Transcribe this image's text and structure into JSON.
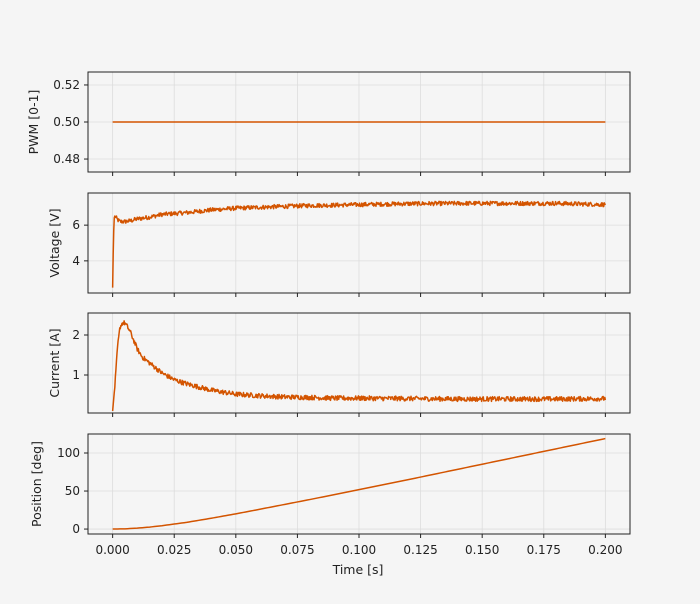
{
  "colors": {
    "background": "#f5f5f5",
    "line": "#d35400",
    "grid": "#dddddd",
    "axes": "#222222"
  },
  "chart_data": [
    {
      "id": "pwm",
      "type": "line",
      "xlim": [
        -0.01,
        0.21
      ],
      "ylim": [
        0.473,
        0.527
      ],
      "xticks": [
        0,
        0.025,
        0.05,
        0.075,
        0.1,
        0.125,
        0.15,
        0.175,
        0.2
      ],
      "yticks": [
        0.48,
        0.5,
        0.52
      ],
      "ytick_labels": [
        "0.48",
        "0.50",
        "0.52"
      ],
      "ylabel": "PWM [0-1]",
      "xlabel": "",
      "show_xtick_labels": false,
      "grid": true,
      "series": [
        {
          "x": [
            0,
            0.2
          ],
          "y": [
            0.5,
            0.5
          ]
        }
      ]
    },
    {
      "id": "voltage",
      "type": "line",
      "xlim": [
        -0.01,
        0.21
      ],
      "ylim": [
        2.2,
        7.8
      ],
      "xticks": [
        0,
        0.025,
        0.05,
        0.075,
        0.1,
        0.125,
        0.15,
        0.175,
        0.2
      ],
      "yticks": [
        4,
        6
      ],
      "ytick_labels": [
        "4",
        "6"
      ],
      "ylabel": "Voltage [V]",
      "xlabel": "",
      "show_xtick_labels": false,
      "grid": true,
      "noise_amplitude": 0.12,
      "series": [
        {
          "x": [
            0,
            0.0003,
            0.0006,
            0.001,
            0.002,
            0.003,
            0.005,
            0.0075,
            0.01,
            0.015,
            0.02,
            0.025,
            0.03,
            0.04,
            0.05,
            0.06,
            0.07,
            0.08,
            0.09,
            0.1,
            0.12,
            0.14,
            0.16,
            0.18,
            0.2
          ],
          "y": [
            2.5,
            5.0,
            6.4,
            6.5,
            6.3,
            6.2,
            6.2,
            6.25,
            6.35,
            6.45,
            6.6,
            6.65,
            6.7,
            6.85,
            6.95,
            7.0,
            7.05,
            7.1,
            7.12,
            7.15,
            7.2,
            7.22,
            7.22,
            7.22,
            7.15
          ]
        }
      ]
    },
    {
      "id": "current",
      "type": "line",
      "xlim": [
        -0.01,
        0.21
      ],
      "ylim": [
        0.05,
        2.55
      ],
      "xticks": [
        0,
        0.025,
        0.05,
        0.075,
        0.1,
        0.125,
        0.15,
        0.175,
        0.2
      ],
      "yticks": [
        1,
        2
      ],
      "ytick_labels": [
        "1",
        "2"
      ],
      "ylabel": "Current [A]",
      "xlabel": "",
      "show_xtick_labels": false,
      "grid": true,
      "noise_amplitude": 0.06,
      "series": [
        {
          "x": [
            0,
            0.001,
            0.002,
            0.003,
            0.004,
            0.005,
            0.006,
            0.007,
            0.008,
            0.01,
            0.012,
            0.015,
            0.02,
            0.025,
            0.03,
            0.04,
            0.05,
            0.06,
            0.07,
            0.08,
            0.09,
            0.1,
            0.12,
            0.14,
            0.16,
            0.18,
            0.2
          ],
          "y": [
            0.1,
            0.8,
            1.7,
            2.2,
            2.3,
            2.3,
            2.2,
            2.1,
            1.95,
            1.65,
            1.45,
            1.3,
            1.05,
            0.88,
            0.78,
            0.62,
            0.52,
            0.48,
            0.45,
            0.44,
            0.42,
            0.42,
            0.41,
            0.4,
            0.4,
            0.4,
            0.41
          ]
        }
      ]
    },
    {
      "id": "position",
      "type": "line",
      "xlim": [
        -0.01,
        0.21
      ],
      "ylim": [
        -6.5,
        125
      ],
      "xticks": [
        0,
        0.025,
        0.05,
        0.075,
        0.1,
        0.125,
        0.15,
        0.175,
        0.2
      ],
      "xtick_labels": [
        "0.000",
        "0.025",
        "0.050",
        "0.075",
        "0.100",
        "0.125",
        "0.150",
        "0.175",
        "0.200"
      ],
      "yticks": [
        0,
        50,
        100
      ],
      "ytick_labels": [
        "0",
        "50",
        "100"
      ],
      "ylabel": "Position [deg]",
      "xlabel": "Time [s]",
      "show_xtick_labels": true,
      "grid": true,
      "series": [
        {
          "x": [
            0,
            0.005,
            0.01,
            0.015,
            0.02,
            0.03,
            0.04,
            0.05,
            0.06,
            0.08,
            0.1,
            0.12,
            0.14,
            0.16,
            0.18,
            0.2
          ],
          "y": [
            0,
            0.3,
            1.2,
            2.6,
            4.4,
            8.8,
            14.2,
            20.0,
            26.2,
            38.8,
            51.8,
            65.0,
            78.5,
            92.0,
            105.5,
            119.0
          ]
        }
      ]
    }
  ]
}
